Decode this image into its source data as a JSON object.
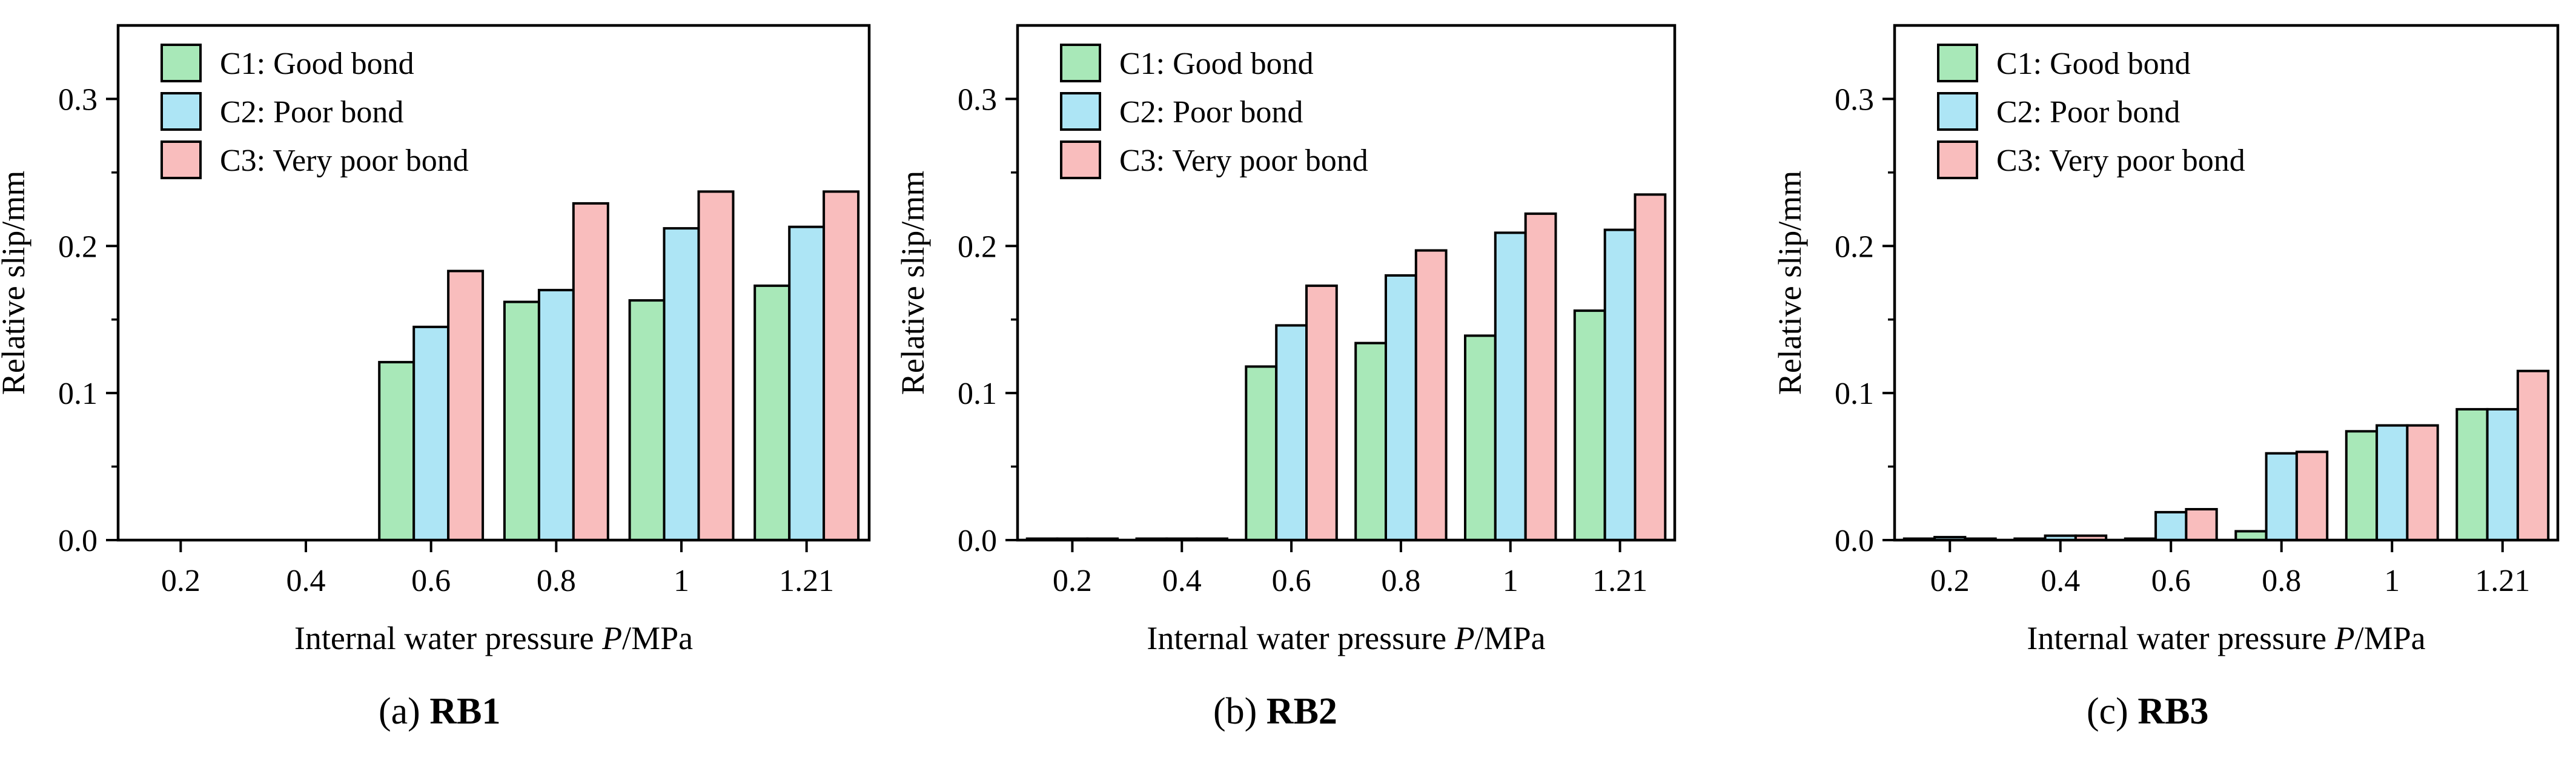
{
  "colors": {
    "c1": "#A8E8B8",
    "c2": "#ADE5F5",
    "c3": "#F9BDBD",
    "stroke": "#000000"
  },
  "chart_data": [
    {
      "type": "bar",
      "panel_label": "(a)",
      "panel_name": "RB1",
      "categories": [
        "0.2",
        "0.4",
        "0.6",
        "0.8",
        "1",
        "1.21"
      ],
      "series": [
        {
          "name": "C1: Good bond",
          "values": [
            0,
            0,
            0.121,
            0.162,
            0.163,
            0.173
          ]
        },
        {
          "name": "C2: Poor bond",
          "values": [
            0,
            0,
            0.145,
            0.17,
            0.212,
            0.213
          ]
        },
        {
          "name": "C3: Very poor bond",
          "values": [
            0,
            0,
            0.183,
            0.229,
            0.237,
            0.237
          ]
        }
      ],
      "xlabel_pre": "Internal water pressure ",
      "xlabel_var": "P",
      "xlabel_post": "/MPa",
      "ylabel": "Relative slip/mm",
      "ylim": [
        0,
        0.35
      ],
      "yticks": [
        "0.0",
        "0.1",
        "0.2",
        "0.3"
      ],
      "legend": "top-left"
    },
    {
      "type": "bar",
      "panel_label": "(b)",
      "panel_name": "RB2",
      "categories": [
        "0.2",
        "0.4",
        "0.6",
        "0.8",
        "1",
        "1.21"
      ],
      "series": [
        {
          "name": "C1: Good bond",
          "values": [
            0.001,
            0.001,
            0.118,
            0.134,
            0.139,
            0.156
          ]
        },
        {
          "name": "C2: Poor bond",
          "values": [
            0.001,
            0.001,
            0.146,
            0.18,
            0.209,
            0.211
          ]
        },
        {
          "name": "C3: Very poor bond",
          "values": [
            0.001,
            0.001,
            0.173,
            0.197,
            0.222,
            0.235
          ]
        }
      ],
      "xlabel_pre": "Internal water pressure ",
      "xlabel_var": "P",
      "xlabel_post": "/MPa",
      "ylabel": "Relative slip/mm",
      "ylim": [
        0,
        0.35
      ],
      "yticks": [
        "0.0",
        "0.1",
        "0.2",
        "0.3"
      ],
      "legend": "top-left"
    },
    {
      "type": "bar",
      "panel_label": "(c)",
      "panel_name": "RB3",
      "categories": [
        "0.2",
        "0.4",
        "0.6",
        "0.8",
        "1",
        "1.21"
      ],
      "series": [
        {
          "name": "C1: Good bond",
          "values": [
            0.001,
            0.001,
            0.001,
            0.006,
            0.074,
            0.089
          ]
        },
        {
          "name": "C2: Poor bond",
          "values": [
            0.002,
            0.003,
            0.019,
            0.059,
            0.078,
            0.089
          ]
        },
        {
          "name": "C3: Very poor bond",
          "values": [
            0.001,
            0.003,
            0.021,
            0.06,
            0.078,
            0.115
          ]
        }
      ],
      "xlabel_pre": "Internal water pressure ",
      "xlabel_var": "P",
      "xlabel_post": "/MPa",
      "ylabel": "Relative slip/mm",
      "ylim": [
        0,
        0.35
      ],
      "yticks": [
        "0.0",
        "0.1",
        "0.2",
        "0.3"
      ],
      "legend": "top-left"
    }
  ]
}
